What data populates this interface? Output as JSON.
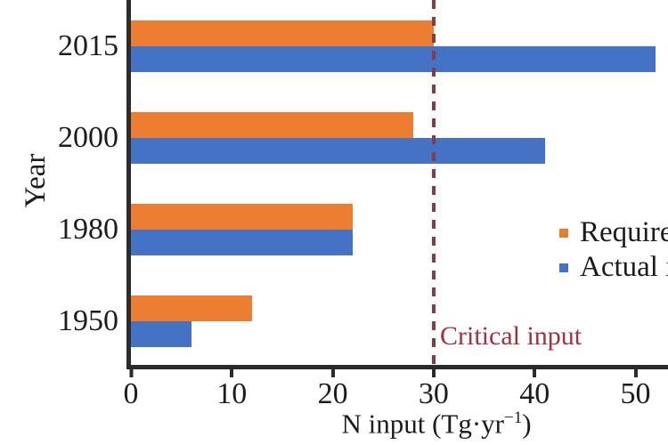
{
  "figure": {
    "background": "#ffffff",
    "axis_color": "#2b2b2b",
    "text_color": "#1c1c1c"
  },
  "chart_data": {
    "type": "bar",
    "orientation": "horizontal",
    "title": "",
    "xlabel": "N input (Tg·yr−1)",
    "xlabel_parts": [
      "N input (Tg·yr",
      "−1",
      ")"
    ],
    "ylabel": "Year",
    "categories": [
      "2015",
      "2000",
      "1980",
      "1950"
    ],
    "series": [
      {
        "name": "Required input",
        "color": "#ED7D31",
        "values": [
          30,
          28,
          22,
          12
        ]
      },
      {
        "name": "Actual input",
        "color": "#4472C4",
        "values": [
          52,
          41,
          22,
          6
        ]
      }
    ],
    "xlim": [
      0,
      53
    ],
    "xticks": [
      0,
      10,
      20,
      30,
      40,
      50
    ],
    "grid": "off",
    "legend_position": "right, clipped at image edge",
    "annotation": {
      "label": "Critical input",
      "x": 30,
      "line_color": "#8a3a41",
      "text_color": "#a82f3e",
      "style": "dashed-vertical-line"
    }
  }
}
